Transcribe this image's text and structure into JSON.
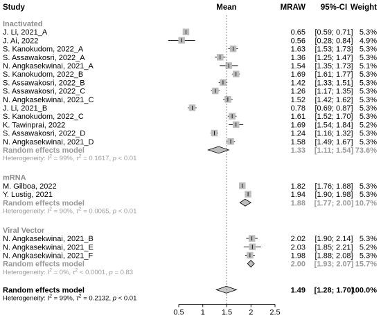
{
  "chart_data": {
    "type": "forest",
    "headers": {
      "study": "Study",
      "mean": "Mean",
      "mraw": "MRAW",
      "ci": "95%-CI",
      "weight": "Weight"
    },
    "x_axis": {
      "min": 0.5,
      "max": 2.5,
      "ticks": [
        {
          "value": 0.5,
          "label": "0.5"
        },
        {
          "value": 1.0,
          "label": "1"
        },
        {
          "value": 1.5,
          "label": "1.5"
        },
        {
          "value": 2.0,
          "label": "2"
        },
        {
          "value": 2.5,
          "label": "2.5"
        }
      ],
      "reference_line": 1.5
    },
    "subgroups": [
      {
        "name": "Inactivated",
        "studies": [
          {
            "study": "J. Li, 2021_A",
            "mean": 0.65,
            "lower": 0.59,
            "upper": 0.71,
            "mraw": "0.65",
            "ci": "[0.59; 0.71]",
            "weight": "5.3%"
          },
          {
            "study": "J. Ai, 2022",
            "mean": 0.56,
            "lower": 0.28,
            "upper": 0.84,
            "mraw": "0.56",
            "ci": "[0.28; 0.84]",
            "weight": "4.9%"
          },
          {
            "study": "S. Kanokudom, 2022_A",
            "mean": 1.63,
            "lower": 1.53,
            "upper": 1.73,
            "mraw": "1.63",
            "ci": "[1.53; 1.73]",
            "weight": "5.3%"
          },
          {
            "study": "S. Assawakosri, 2022_A",
            "mean": 1.36,
            "lower": 1.25,
            "upper": 1.47,
            "mraw": "1.36",
            "ci": "[1.25; 1.47]",
            "weight": "5.3%"
          },
          {
            "study": "N. Angkasekwinai, 2021_A",
            "mean": 1.54,
            "lower": 1.35,
            "upper": 1.73,
            "mraw": "1.54",
            "ci": "[1.35; 1.73]",
            "weight": "5.1%"
          },
          {
            "study": "S. Kanokudom, 2022_B",
            "mean": 1.69,
            "lower": 1.61,
            "upper": 1.77,
            "mraw": "1.69",
            "ci": "[1.61; 1.77]",
            "weight": "5.3%"
          },
          {
            "study": "S. Assawakosri, 2022_B",
            "mean": 1.42,
            "lower": 1.33,
            "upper": 1.51,
            "mraw": "1.42",
            "ci": "[1.33; 1.51]",
            "weight": "5.3%"
          },
          {
            "study": "S. Assawakosri, 2022_C",
            "mean": 1.26,
            "lower": 1.17,
            "upper": 1.35,
            "mraw": "1.26",
            "ci": "[1.17; 1.35]",
            "weight": "5.3%"
          },
          {
            "study": "N. Angkasekwinai, 2021_C",
            "mean": 1.52,
            "lower": 1.42,
            "upper": 1.62,
            "mraw": "1.52",
            "ci": "[1.42; 1.62]",
            "weight": "5.3%"
          },
          {
            "study": "J. Li, 2021_B",
            "mean": 0.78,
            "lower": 0.69,
            "upper": 0.87,
            "mraw": "0.78",
            "ci": "[0.69; 0.87]",
            "weight": "5.3%"
          },
          {
            "study": "S. Kanokudom, 2022_C",
            "mean": 1.61,
            "lower": 1.52,
            "upper": 1.7,
            "mraw": "1.61",
            "ci": "[1.52; 1.70]",
            "weight": "5.3%"
          },
          {
            "study": "K. Tawinprai, 2022",
            "mean": 1.69,
            "lower": 1.54,
            "upper": 1.84,
            "mraw": "1.69",
            "ci": "[1.54; 1.84]",
            "weight": "5.2%"
          },
          {
            "study": "S. Assawakosri, 2022_D",
            "mean": 1.24,
            "lower": 1.16,
            "upper": 1.32,
            "mraw": "1.24",
            "ci": "[1.16; 1.32]",
            "weight": "5.3%"
          },
          {
            "study": "N. Angkasekwinai, 2021_D",
            "mean": 1.58,
            "lower": 1.49,
            "upper": 1.67,
            "mraw": "1.58",
            "ci": "[1.49; 1.67]",
            "weight": "5.3%"
          }
        ],
        "model": {
          "label": "Random effects model",
          "mean": 1.33,
          "lower": 1.11,
          "upper": 1.54,
          "mraw": "1.33",
          "ci": "[1.11; 1.54]",
          "weight": "73.6%"
        },
        "heterogeneity": {
          "prefix": "Heterogeneity: ",
          "i2_symbol": "I",
          "i2_sup": "2",
          "i2_rest": " = 99%, ",
          "tau_symbol": "τ",
          "tau_sup": "2",
          "tau_rest": " = 0.1617, ",
          "p_symbol": "p",
          "p_rest": " < 0.01"
        }
      },
      {
        "name": "mRNA",
        "studies": [
          {
            "study": "M. Gilboa, 2022",
            "mean": 1.82,
            "lower": 1.76,
            "upper": 1.88,
            "mraw": "1.82",
            "ci": "[1.76; 1.88]",
            "weight": "5.3%"
          },
          {
            "study": "Y. Lustig, 2021",
            "mean": 1.94,
            "lower": 1.9,
            "upper": 1.98,
            "mraw": "1.94",
            "ci": "[1.90; 1.98]",
            "weight": "5.3%"
          }
        ],
        "model": {
          "label": "Random effects model",
          "mean": 1.88,
          "lower": 1.77,
          "upper": 2.0,
          "mraw": "1.88",
          "ci": "[1.77; 2.00]",
          "weight": "10.7%"
        },
        "heterogeneity": {
          "prefix": "Heterogeneity: ",
          "i2_symbol": "I",
          "i2_sup": "2",
          "i2_rest": " = 90%, ",
          "tau_symbol": "τ",
          "tau_sup": "2",
          "tau_rest": " = 0.0065, ",
          "p_symbol": "p",
          "p_rest": " < 0.01"
        }
      },
      {
        "name": "Viral Vector",
        "studies": [
          {
            "study": "N. Angkasekwinai, 2021_B",
            "mean": 2.02,
            "lower": 1.9,
            "upper": 2.14,
            "mraw": "2.02",
            "ci": "[1.90; 2.14]",
            "weight": "5.3%"
          },
          {
            "study": "N. Angkasekwinai, 2021_E",
            "mean": 2.03,
            "lower": 1.85,
            "upper": 2.21,
            "mraw": "2.03",
            "ci": "[1.85; 2.21]",
            "weight": "5.2%"
          },
          {
            "study": "N. Angkasekwinai, 2021_F",
            "mean": 1.98,
            "lower": 1.88,
            "upper": 2.08,
            "mraw": "1.98",
            "ci": "[1.88; 2.08]",
            "weight": "5.3%"
          }
        ],
        "model": {
          "label": "Random effects model",
          "mean": 2.0,
          "lower": 1.93,
          "upper": 2.07,
          "mraw": "2.00",
          "ci": "[1.93; 2.07]",
          "weight": "15.7%"
        },
        "heterogeneity": {
          "prefix": "Heterogeneity: ",
          "i2_symbol": "I",
          "i2_sup": "2",
          "i2_rest": " = 0%, ",
          "tau_symbol": "τ",
          "tau_sup": "2",
          "tau_rest": " < 0.0001, ",
          "p_symbol": "p",
          "p_rest": " = 0.83"
        }
      }
    ],
    "overall": {
      "label": "Random effects model",
      "mean": 1.49,
      "lower": 1.28,
      "upper": 1.7,
      "mraw": "1.49",
      "ci": "[1.28; 1.70]",
      "weight": "100.0%",
      "heterogeneity": {
        "prefix": "Heterogeneity: ",
        "i2_symbol": "I",
        "i2_sup": "2",
        "i2_rest": " = 99%, ",
        "tau_symbol": "τ",
        "tau_sup": "2",
        "tau_rest": " = 0.2132, ",
        "p_symbol": "p",
        "p_rest": " < 0.01"
      }
    },
    "colors": {
      "box": "#bdbdbd",
      "subgroup_diamond": "#bdbdbd",
      "overall_diamond": "#c8c8c8",
      "subgroup_text": "#8c8c8c",
      "line": "#000000"
    }
  }
}
